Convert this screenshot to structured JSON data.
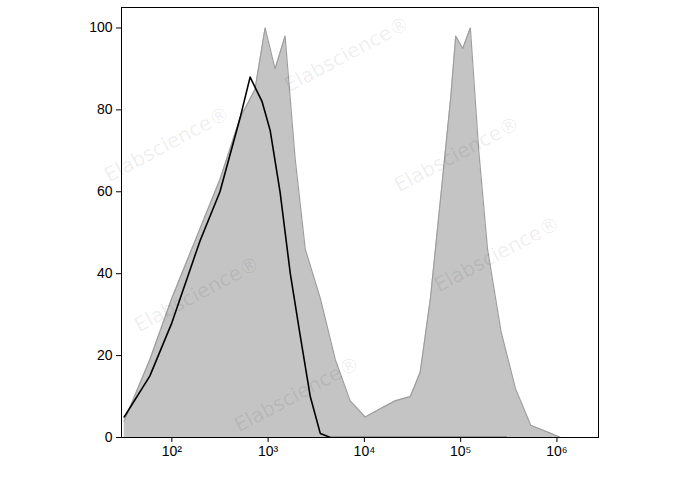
{
  "chart_data": {
    "type": "line",
    "log": "x",
    "grid": false,
    "xlim": [
      30,
      2700000
    ],
    "ylim": [
      0,
      105
    ],
    "xticks": [
      {
        "value": 100,
        "label": "10²"
      },
      {
        "value": 1000,
        "label": "10³"
      },
      {
        "value": 10000,
        "label": "10⁴"
      },
      {
        "value": 100000,
        "label": "10⁵"
      },
      {
        "value": 1000000,
        "label": "10⁶"
      }
    ],
    "yticks": [
      0,
      20,
      40,
      60,
      80,
      100
    ],
    "annotations": [
      "Elabscience®"
    ],
    "series": [
      {
        "type": "area",
        "color": "#c4c4c4",
        "x": [
          32,
          59,
          100,
          196,
          316,
          511,
          730,
          930,
          1180,
          1500,
          1910,
          2430,
          3480,
          4990,
          7100,
          10200,
          14600,
          21000,
          30000,
          38000,
          48500,
          61600,
          78800,
          88800,
          105000,
          126000,
          154000,
          190000,
          262000,
          370000,
          534000,
          864000,
          1090000
        ],
        "values": [
          4,
          19,
          34,
          51,
          63,
          78,
          85,
          100,
          90,
          98,
          68,
          46,
          34,
          19,
          9,
          5,
          7,
          9,
          10,
          16,
          34,
          58,
          83,
          98,
          95,
          100,
          70,
          46,
          26,
          12,
          3,
          1,
          0
        ]
      },
      {
        "type": "line",
        "color": "#000000",
        "x": [
          32,
          59,
          100,
          196,
          316,
          511,
          650,
          866,
          1050,
          1330,
          1700,
          2150,
          2740,
          3480,
          4440,
          10200,
          30000,
          100000,
          300000
        ],
        "values": [
          5,
          15,
          28,
          48,
          60,
          78,
          88,
          82,
          75,
          60,
          40,
          25,
          10,
          1,
          0,
          0,
          0,
          0,
          0
        ]
      }
    ]
  }
}
